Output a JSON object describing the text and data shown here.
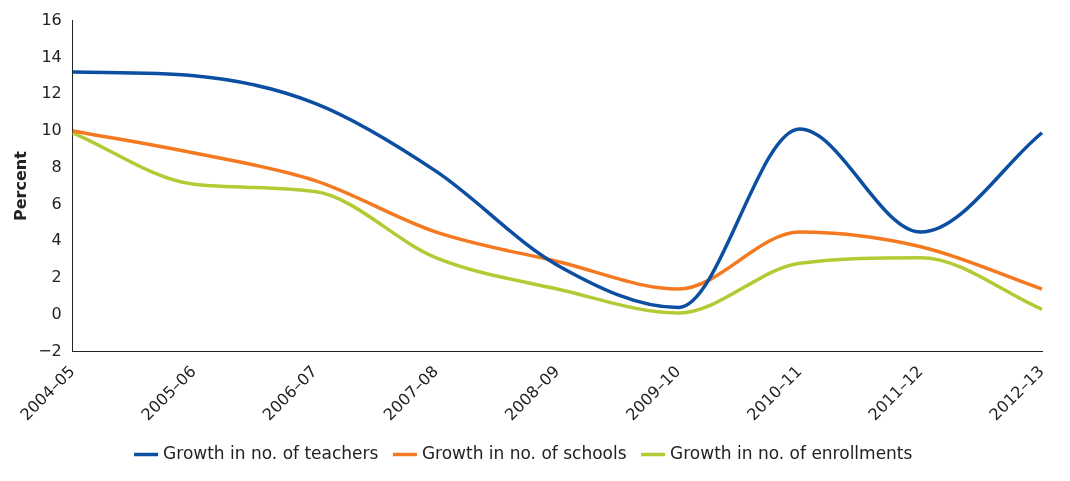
{
  "chart_data": {
    "type": "line",
    "ylabel": "Percent",
    "categories": [
      "2004–05",
      "2005–06",
      "2006–07",
      "2007–08",
      "2008–09",
      "2009–10",
      "2010–11",
      "2011–12",
      "2012–13"
    ],
    "series": [
      {
        "name": "Growth in no. of teachers",
        "color": "#0b4ea2",
        "values": [
          13.2,
          13.0,
          11.5,
          7.8,
          2.7,
          0.4,
          10.1,
          4.5,
          9.9
        ]
      },
      {
        "name": "Growth in no. of schools",
        "color": "#f47920",
        "values": [
          10.0,
          8.8,
          7.3,
          4.5,
          2.9,
          1.4,
          4.5,
          3.7,
          1.4
        ]
      },
      {
        "name": "Growth in no. of enrollments",
        "color": "#b5c935",
        "values": [
          9.9,
          7.1,
          6.7,
          3.1,
          1.4,
          0.1,
          2.8,
          3.1,
          0.3
        ]
      }
    ],
    "ylim": [
      -2,
      16
    ],
    "yticks": [
      -2,
      0,
      2,
      4,
      6,
      8,
      10,
      12,
      14,
      16
    ],
    "grid": false,
    "legend": "bottom",
    "marker": "none",
    "line_style": "solid"
  }
}
